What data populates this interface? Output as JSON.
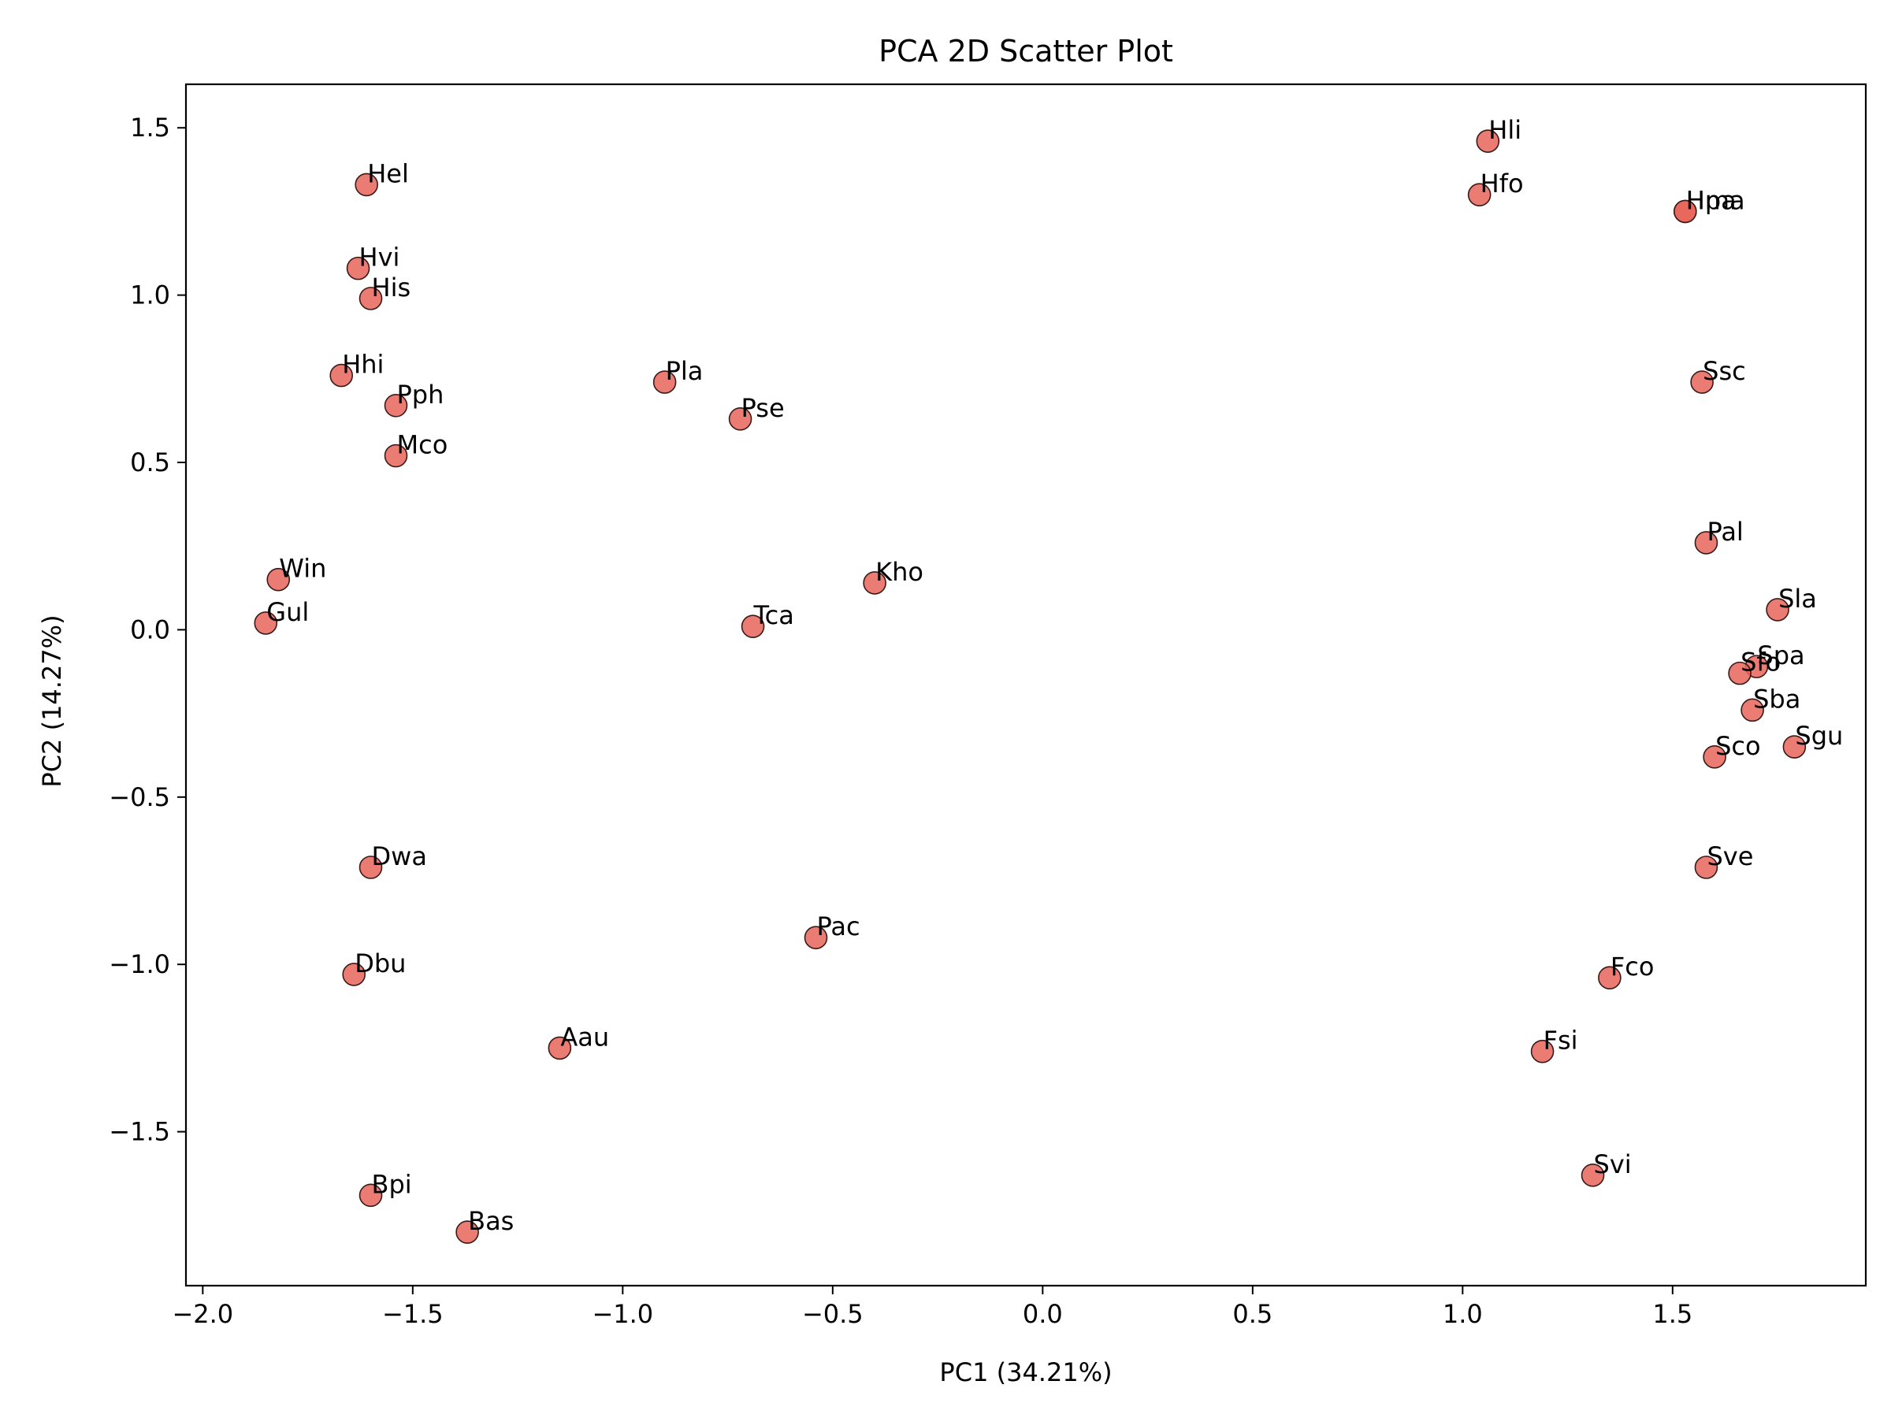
{
  "chart_data": {
    "type": "scatter",
    "title": "PCA 2D Scatter Plot",
    "xlabel": "PC1 (34.21%)",
    "ylabel": "PC2 (14.27%)",
    "xlim": [
      -2.04,
      1.96
    ],
    "ylim": [
      -1.96,
      1.63
    ],
    "xticks": [
      -2.0,
      -1.5,
      -1.0,
      -0.5,
      0.0,
      0.5,
      1.0,
      1.5
    ],
    "xtick_labels": [
      "−2.0",
      "−1.5",
      "−1.0",
      "−0.5",
      "0.0",
      "0.5",
      "1.0",
      "1.5"
    ],
    "yticks": [
      -1.5,
      -1.0,
      -0.5,
      0.0,
      0.5,
      1.0,
      1.5
    ],
    "ytick_labels": [
      "−1.5",
      "−1.0",
      "−0.5",
      "0.0",
      "0.5",
      "1.0",
      "1.5"
    ],
    "grid": false,
    "marker_color": "#e8655a",
    "marker_edge_color": "#3a1a18",
    "points": [
      {
        "label": "Hel",
        "x": -1.61,
        "y": 1.33
      },
      {
        "label": "Hvi",
        "x": -1.63,
        "y": 1.08
      },
      {
        "label": "His",
        "x": -1.6,
        "y": 0.99
      },
      {
        "label": "Hhi",
        "x": -1.67,
        "y": 0.76
      },
      {
        "label": "Pph",
        "x": -1.54,
        "y": 0.67
      },
      {
        "label": "Mco",
        "x": -1.54,
        "y": 0.52
      },
      {
        "label": "Win",
        "x": -1.82,
        "y": 0.15
      },
      {
        "label": "Gul",
        "x": -1.85,
        "y": 0.02
      },
      {
        "label": "Pla",
        "x": -0.9,
        "y": 0.74
      },
      {
        "label": "Pse",
        "x": -0.72,
        "y": 0.63
      },
      {
        "label": "Kho",
        "x": -0.4,
        "y": 0.14
      },
      {
        "label": "Tca",
        "x": -0.69,
        "y": 0.01
      },
      {
        "label": "Dwa",
        "x": -1.6,
        "y": -0.71
      },
      {
        "label": "Pac",
        "x": -0.54,
        "y": -0.92
      },
      {
        "label": "Dbu",
        "x": -1.64,
        "y": -1.03
      },
      {
        "label": "Aau",
        "x": -1.15,
        "y": -1.25
      },
      {
        "label": "Bpi",
        "x": -1.6,
        "y": -1.69
      },
      {
        "label": "Bas",
        "x": -1.37,
        "y": -1.8
      },
      {
        "label": "Hli",
        "x": 1.06,
        "y": 1.46
      },
      {
        "label": "Hfo",
        "x": 1.04,
        "y": 1.3
      },
      {
        "label": "Hma",
        "x": 1.53,
        "y": 1.25
      },
      {
        "label": "Hpa",
        "x": 1.53,
        "y": 1.25
      },
      {
        "label": "Ssc",
        "x": 1.57,
        "y": 0.74
      },
      {
        "label": "Pal",
        "x": 1.58,
        "y": 0.26
      },
      {
        "label": "Sla",
        "x": 1.75,
        "y": 0.06
      },
      {
        "label": "Spa",
        "x": 1.7,
        "y": -0.11
      },
      {
        "label": "Sfo",
        "x": 1.66,
        "y": -0.13
      },
      {
        "label": "Sba",
        "x": 1.69,
        "y": -0.24
      },
      {
        "label": "Sgu",
        "x": 1.79,
        "y": -0.35
      },
      {
        "label": "Sco",
        "x": 1.6,
        "y": -0.38
      },
      {
        "label": "Sve",
        "x": 1.58,
        "y": -0.71
      },
      {
        "label": "Fco",
        "x": 1.35,
        "y": -1.04
      },
      {
        "label": "Fsi",
        "x": 1.19,
        "y": -1.26
      },
      {
        "label": "Svi",
        "x": 1.31,
        "y": -1.63
      }
    ]
  }
}
